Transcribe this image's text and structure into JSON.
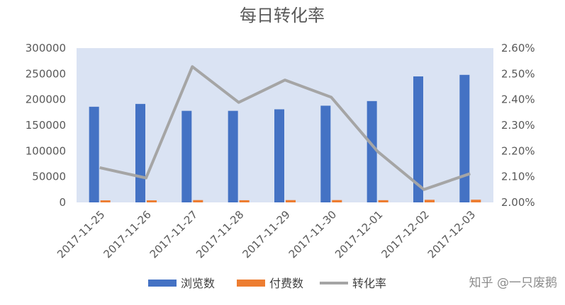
{
  "chart_data": {
    "type": "bar",
    "title": "每日转化率",
    "categories": [
      "2017-11-25",
      "2017-11-26",
      "2017-11-27",
      "2017-11-28",
      "2017-11-29",
      "2017-11-30",
      "2017-12-01",
      "2017-12-02",
      "2017-12-03"
    ],
    "series": [
      {
        "name": "浏览数",
        "type": "bar",
        "axis": "left",
        "color": "#4472C4",
        "values": [
          186000,
          191500,
          178000,
          178000,
          181000,
          188000,
          197000,
          245000,
          248000
        ]
      },
      {
        "name": "付费数",
        "type": "bar",
        "axis": "left",
        "color": "#ED7D31",
        "values": [
          3970,
          4010,
          4500,
          4250,
          4480,
          4530,
          4330,
          5020,
          5240
        ]
      },
      {
        "name": "转化率",
        "type": "line",
        "axis": "right",
        "color": "#A5A5A5",
        "values": [
          0.02135,
          0.02095,
          0.02528,
          0.02389,
          0.02476,
          0.02409,
          0.02198,
          0.0205,
          0.02112
        ]
      }
    ],
    "ylim_left": [
      0,
      300000
    ],
    "ylim_right": [
      0.02,
      0.026
    ],
    "yticks_left": [
      "0",
      "50000",
      "100000",
      "150000",
      "200000",
      "250000",
      "300000"
    ],
    "yticks_right": [
      "2.00%",
      "2.10%",
      "2.20%",
      "2.30%",
      "2.40%",
      "2.50%",
      "2.60%"
    ],
    "legend_position": "bottom",
    "plot_background": "#DAE3F3"
  },
  "watermark": "知乎 @一只废鹅"
}
